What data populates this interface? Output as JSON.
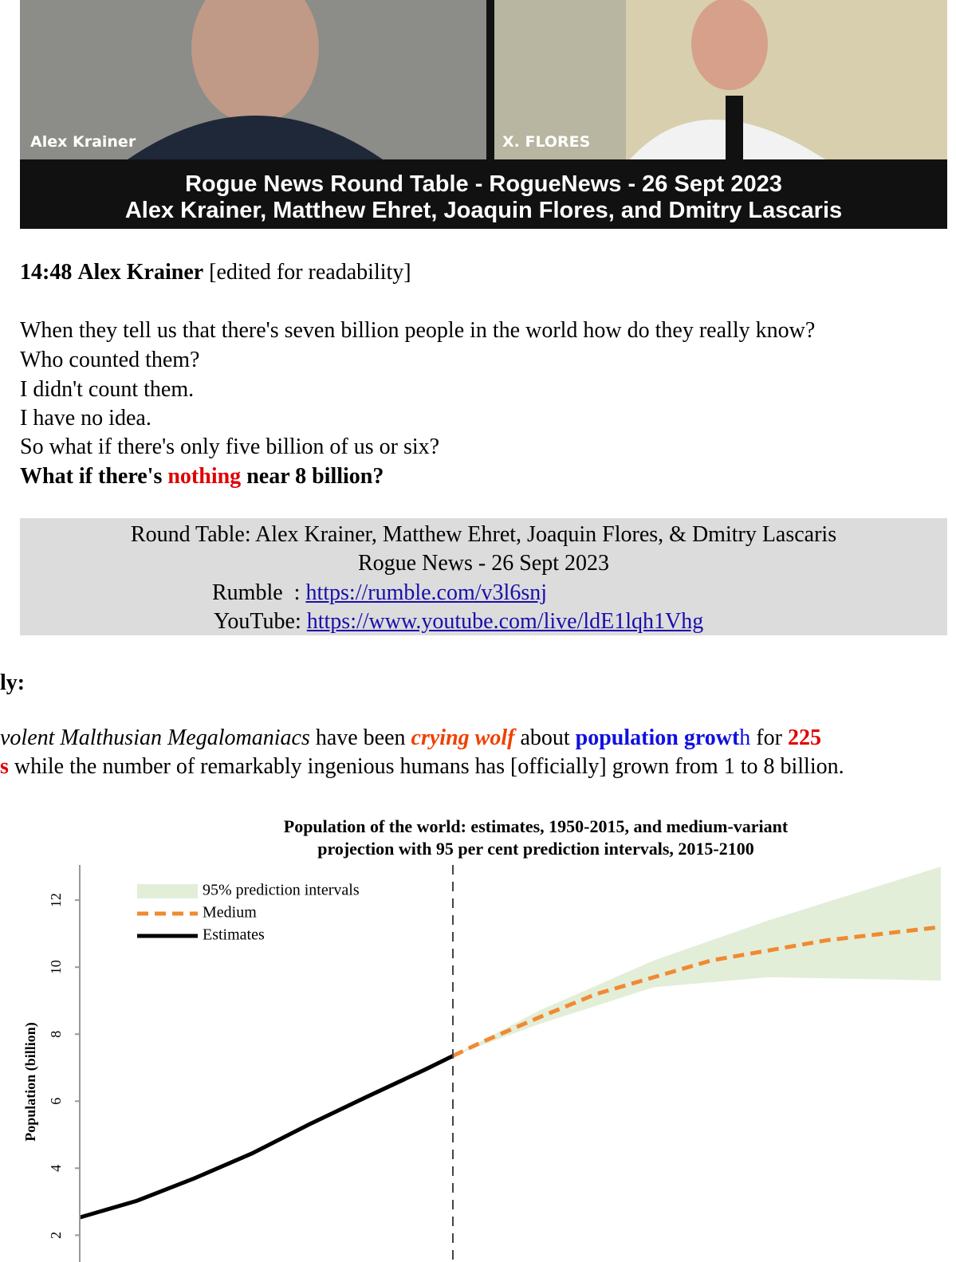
{
  "video": {
    "speakers": [
      "Alex Krainer",
      "X. FLORES"
    ],
    "caption": [
      "Rogue News Round Table - RogueNews - 26 Sept 2023",
      "Alex Krainer, Matthew Ehret, Joaquin Flores, and Dmitry Lascaris"
    ]
  },
  "quote": {
    "timestamp": "14:48",
    "speaker": "Alex Krainer",
    "note": "[edited for readability]",
    "lines": [
      "When they tell us that there's seven billion people in the world how do they really know?",
      "Who counted them?",
      "I didn't count them.",
      "I have no idea.",
      "So what if there's only five billion of us or six?"
    ],
    "last_line": [
      "What if there's ",
      "nothing",
      " near 8 billion?"
    ]
  },
  "source_box": {
    "title": "Round Table: Alex Krainer, Matthew Ehret, Joaquin Flores, & Dmitry Lascaris",
    "subtitle": "Rogue News - 26 Sept 2023",
    "links": [
      {
        "label": "Rumble  :",
        "url": "https://rumble.com/v3l6snj"
      },
      {
        "label": "YouTube:",
        "url": "https://www.youtube.com/live/ldE1lqh1Vhg"
      }
    ]
  },
  "section_heading": "ly:",
  "commentary": {
    "line1": [
      "volent Malthusian Megalomaniacs",
      " have been ",
      "crying wolf",
      " about ",
      "population growt",
      "h",
      " for ",
      "225"
    ],
    "line2": [
      "s",
      " while the number of remarkably ingenious humans has [officially] grown from 1 to 8 billion."
    ]
  },
  "chart_data": {
    "type": "line",
    "title": [
      "Population of the world: estimates, 1950-2015, and medium-variant",
      "projection with 95 per cent prediction intervals, 2015-2100"
    ],
    "y_label": "Population (billion)",
    "xlim": [
      1950,
      2100
    ],
    "ylim": [
      1.2,
      13.05
    ],
    "yticks": [
      2,
      4,
      6,
      8,
      10,
      12
    ],
    "reference_x": 2015,
    "series": [
      {
        "name": "95% prediction intervals",
        "kind": "band",
        "color": "#e3eed8",
        "x": [
          2015,
          2030,
          2050,
          2070,
          2100
        ],
        "lower": [
          7.35,
          8.3,
          9.4,
          9.7,
          9.6
        ],
        "upper": [
          7.35,
          8.7,
          10.2,
          11.4,
          13.0
        ]
      },
      {
        "name": "Medium",
        "kind": "dashed",
        "color": "#f08a32",
        "x": [
          2015,
          2020,
          2030,
          2040,
          2050,
          2060,
          2070,
          2080,
          2090,
          2100
        ],
        "values": [
          7.35,
          7.76,
          8.5,
          9.2,
          9.7,
          10.2,
          10.5,
          10.8,
          11.0,
          11.2
        ]
      },
      {
        "name": "Estimates",
        "kind": "solid",
        "color": "#000000",
        "x": [
          1950,
          1960,
          1970,
          1980,
          1990,
          2000,
          2010,
          2015
        ],
        "values": [
          2.53,
          3.03,
          3.7,
          4.44,
          5.31,
          6.13,
          6.93,
          7.35
        ]
      }
    ]
  }
}
